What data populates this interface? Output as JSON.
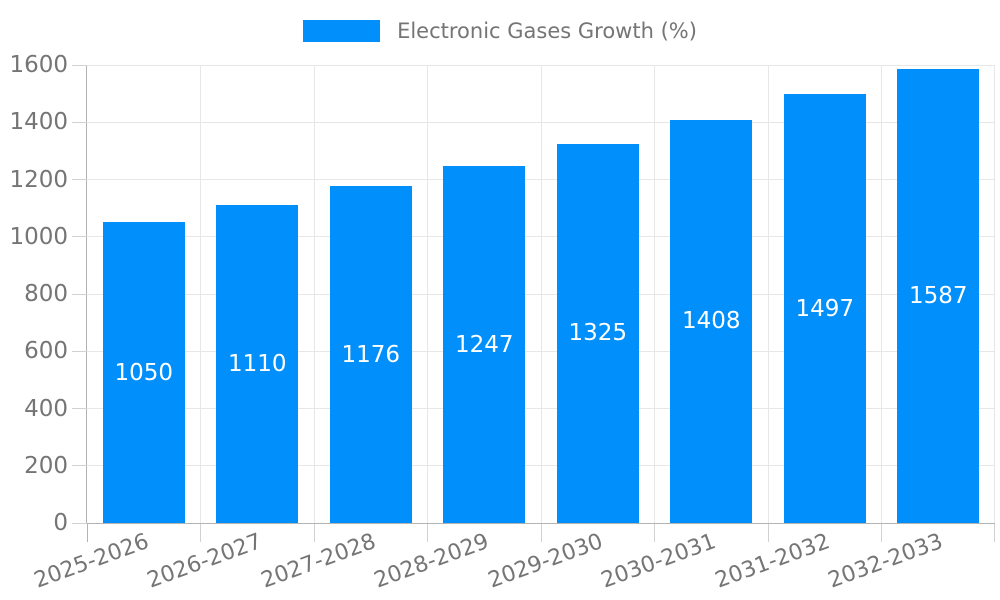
{
  "chart_data": {
    "type": "bar",
    "title": "",
    "xlabel": "",
    "ylabel": "",
    "legend_position": "top",
    "legend_entries": [
      {
        "label": "Electronic Gases Growth (%)",
        "color": "#008FFB"
      }
    ],
    "categories": [
      "2025-2026",
      "2026-2027",
      "2027-2028",
      "2028-2029",
      "2029-2030",
      "2030-2031",
      "2031-2032",
      "2032-2033"
    ],
    "values": [
      1050,
      1110,
      1176,
      1247,
      1325,
      1408,
      1497,
      1587
    ],
    "ylim": [
      0,
      1600
    ],
    "ytick_step": 200,
    "grid": true,
    "value_label_position": "inside-center"
  },
  "colors": {
    "bar": "#008FFB",
    "grid": "#e7e7e7",
    "axis": "#b3b3b3",
    "tick": "#d2d2d2",
    "label": "#757575",
    "value_label": "#ffffff",
    "background": "#ffffff"
  }
}
